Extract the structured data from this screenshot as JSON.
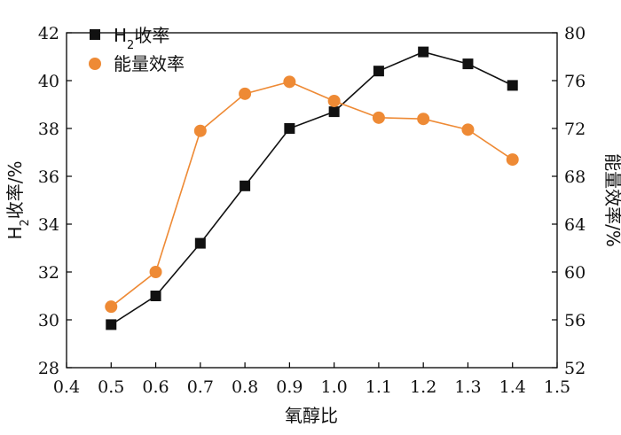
{
  "chart_data": {
    "type": "line",
    "xlabel": "氧醇比",
    "ylabel_left": {
      "main": "H",
      "sub": "2",
      "rest": "收率/%"
    },
    "ylabel_right": "能量效率/%",
    "x": [
      0.5,
      0.6,
      0.7,
      0.8,
      0.9,
      1.0,
      1.1,
      1.2,
      1.3,
      1.4
    ],
    "xlim": [
      0.4,
      1.5
    ],
    "xticks": [
      "0.4",
      "0.5",
      "0.6",
      "0.7",
      "0.8",
      "0.9",
      "1.0",
      "1.1",
      "1.2",
      "1.3",
      "1.4",
      "1.5"
    ],
    "ylim_left": [
      28,
      42
    ],
    "yticks_left": [
      "28",
      "30",
      "32",
      "34",
      "36",
      "38",
      "40",
      "42"
    ],
    "ylim_right": [
      52,
      80
    ],
    "yticks_right": [
      "52",
      "56",
      "60",
      "64",
      "68",
      "72",
      "76",
      "80"
    ],
    "series": [
      {
        "key": "h2",
        "legend": {
          "main": "H",
          "sub": "2",
          "rest": "收率"
        },
        "axis": "left",
        "marker": "square",
        "color": "#111111",
        "values": [
          29.8,
          31.0,
          33.2,
          35.6,
          38.0,
          38.7,
          40.4,
          41.2,
          40.7,
          39.8
        ]
      },
      {
        "key": "energy",
        "legend": {
          "main": "能量效率",
          "sub": "",
          "rest": ""
        },
        "axis": "right",
        "marker": "circle",
        "color": "#ee8a35",
        "values": [
          57.1,
          60.0,
          71.8,
          74.9,
          75.9,
          74.3,
          72.9,
          72.8,
          71.9,
          69.4
        ]
      }
    ],
    "legend_position": "top-left",
    "grid": false
  }
}
